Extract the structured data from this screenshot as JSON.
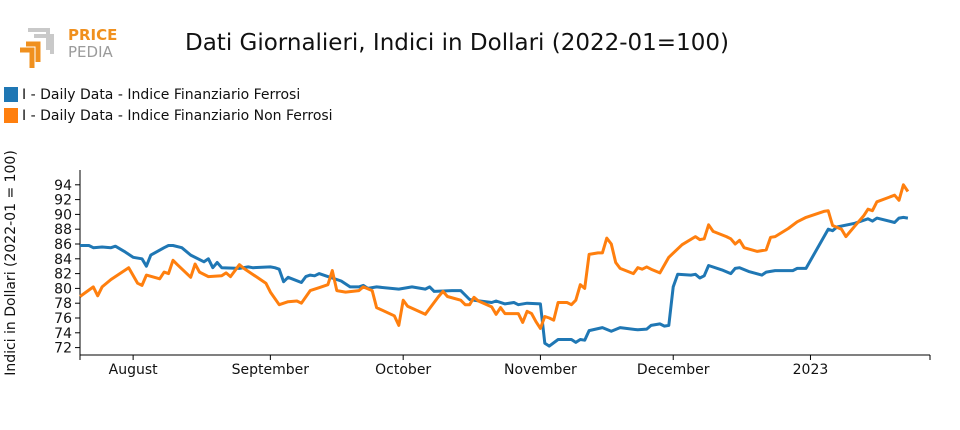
{
  "logo": {
    "line1": "PRICE",
    "line2": "PEDIA",
    "accent_color": "#f0901e",
    "secondary_color": "#9b9b9b"
  },
  "chart_data": {
    "type": "line",
    "title": "Dati Giornalieri, Indici in Dollari (2022-01=100)",
    "xlabel": "",
    "ylabel": "Indici in Dollari (2022-01 = 100)",
    "xlim": [
      "2022-07-20",
      "2023-01-28"
    ],
    "ylim": [
      71,
      96
    ],
    "y_ticks": [
      72,
      74,
      76,
      78,
      80,
      82,
      84,
      86,
      88,
      90,
      92,
      94
    ],
    "x_ticks": [
      {
        "date": "2022-08-01",
        "label": "August"
      },
      {
        "date": "2022-09-01",
        "label": "September"
      },
      {
        "date": "2022-10-01",
        "label": "October"
      },
      {
        "date": "2022-11-01",
        "label": "November"
      },
      {
        "date": "2022-12-01",
        "label": "December"
      },
      {
        "date": "2023-01-01",
        "label": "2023"
      }
    ],
    "grid": false,
    "legend_position": "top-left",
    "series": [
      {
        "name": "I - Daily Data - Indice Finanziario Ferrosi",
        "color": "#1f77b4",
        "points": [
          [
            "2022-07-20",
            85.8
          ],
          [
            "2022-07-22",
            85.8
          ],
          [
            "2022-07-23",
            85.5
          ],
          [
            "2022-07-25",
            85.6
          ],
          [
            "2022-07-27",
            85.5
          ],
          [
            "2022-07-28",
            85.7
          ],
          [
            "2022-07-30",
            85.0
          ],
          [
            "2022-08-01",
            84.2
          ],
          [
            "2022-08-03",
            84.0
          ],
          [
            "2022-08-04",
            83.0
          ],
          [
            "2022-08-05",
            84.5
          ],
          [
            "2022-08-08",
            85.5
          ],
          [
            "2022-08-09",
            85.8
          ],
          [
            "2022-08-10",
            85.8
          ],
          [
            "2022-08-12",
            85.5
          ],
          [
            "2022-08-14",
            84.5
          ],
          [
            "2022-08-17",
            83.6
          ],
          [
            "2022-08-18",
            84.0
          ],
          [
            "2022-08-19",
            82.8
          ],
          [
            "2022-08-20",
            83.5
          ],
          [
            "2022-08-21",
            82.8
          ],
          [
            "2022-08-25",
            82.7
          ],
          [
            "2022-08-27",
            82.9
          ],
          [
            "2022-08-28",
            82.8
          ],
          [
            "2022-09-01",
            82.9
          ],
          [
            "2022-09-02",
            82.8
          ],
          [
            "2022-09-03",
            82.6
          ],
          [
            "2022-09-04",
            80.9
          ],
          [
            "2022-09-05",
            81.5
          ],
          [
            "2022-09-08",
            80.8
          ],
          [
            "2022-09-09",
            81.6
          ],
          [
            "2022-09-10",
            81.8
          ],
          [
            "2022-09-11",
            81.7
          ],
          [
            "2022-09-12",
            82.0
          ],
          [
            "2022-09-14",
            81.6
          ],
          [
            "2022-09-17",
            81.0
          ],
          [
            "2022-09-19",
            80.2
          ],
          [
            "2022-09-21",
            80.2
          ],
          [
            "2022-09-22",
            80.4
          ],
          [
            "2022-09-23",
            80.0
          ],
          [
            "2022-09-25",
            80.2
          ],
          [
            "2022-09-30",
            79.9
          ],
          [
            "2022-10-03",
            80.2
          ],
          [
            "2022-10-06",
            79.9
          ],
          [
            "2022-10-07",
            80.2
          ],
          [
            "2022-10-08",
            79.6
          ],
          [
            "2022-10-12",
            79.7
          ],
          [
            "2022-10-14",
            79.7
          ],
          [
            "2022-10-16",
            78.5
          ],
          [
            "2022-10-17",
            78.4
          ],
          [
            "2022-10-21",
            78.1
          ],
          [
            "2022-10-22",
            78.3
          ],
          [
            "2022-10-24",
            77.9
          ],
          [
            "2022-10-26",
            78.1
          ],
          [
            "2022-10-27",
            77.8
          ],
          [
            "2022-10-29",
            78.0
          ],
          [
            "2022-11-01",
            77.9
          ],
          [
            "2022-11-02",
            72.6
          ],
          [
            "2022-11-03",
            72.2
          ],
          [
            "2022-11-05",
            73.1
          ],
          [
            "2022-11-08",
            73.1
          ],
          [
            "2022-11-09",
            72.7
          ],
          [
            "2022-11-10",
            73.1
          ],
          [
            "2022-11-11",
            73.0
          ],
          [
            "2022-11-12",
            74.3
          ],
          [
            "2022-11-15",
            74.7
          ],
          [
            "2022-11-17",
            74.2
          ],
          [
            "2022-11-19",
            74.7
          ],
          [
            "2022-11-23",
            74.4
          ],
          [
            "2022-11-25",
            74.5
          ],
          [
            "2022-11-26",
            75.0
          ],
          [
            "2022-11-28",
            75.2
          ],
          [
            "2022-11-29",
            74.9
          ],
          [
            "2022-11-30",
            75.0
          ],
          [
            "2022-12-01",
            80.2
          ],
          [
            "2022-12-02",
            81.9
          ],
          [
            "2022-12-05",
            81.8
          ],
          [
            "2022-12-06",
            81.9
          ],
          [
            "2022-12-07",
            81.4
          ],
          [
            "2022-12-08",
            81.7
          ],
          [
            "2022-12-09",
            83.1
          ],
          [
            "2022-12-12",
            82.5
          ],
          [
            "2022-12-14",
            82.0
          ],
          [
            "2022-12-15",
            82.7
          ],
          [
            "2022-12-16",
            82.8
          ],
          [
            "2022-12-18",
            82.3
          ],
          [
            "2022-12-21",
            81.8
          ],
          [
            "2022-12-22",
            82.2
          ],
          [
            "2022-12-24",
            82.4
          ],
          [
            "2022-12-28",
            82.4
          ],
          [
            "2022-12-29",
            82.7
          ],
          [
            "2022-12-31",
            82.7
          ],
          [
            "2023-01-05",
            88.0
          ],
          [
            "2023-01-06",
            87.8
          ],
          [
            "2023-01-07",
            88.3
          ],
          [
            "2023-01-11",
            88.8
          ],
          [
            "2023-01-14",
            89.4
          ],
          [
            "2023-01-15",
            89.1
          ],
          [
            "2023-01-16",
            89.5
          ],
          [
            "2023-01-20",
            88.9
          ],
          [
            "2023-01-21",
            89.5
          ],
          [
            "2023-01-22",
            89.6
          ],
          [
            "2023-01-23",
            89.5
          ]
        ]
      },
      {
        "name": "I - Daily Data - Indice Finanziario Non Ferrosi",
        "color": "#ff7f0e",
        "points": [
          [
            "2022-07-20",
            78.9
          ],
          [
            "2022-07-23",
            80.2
          ],
          [
            "2022-07-24",
            79.0
          ],
          [
            "2022-07-25",
            80.2
          ],
          [
            "2022-07-27",
            81.2
          ],
          [
            "2022-07-31",
            82.8
          ],
          [
            "2022-08-02",
            80.7
          ],
          [
            "2022-08-03",
            80.4
          ],
          [
            "2022-08-04",
            81.8
          ],
          [
            "2022-08-07",
            81.3
          ],
          [
            "2022-08-08",
            82.2
          ],
          [
            "2022-08-09",
            82.0
          ],
          [
            "2022-08-10",
            83.8
          ],
          [
            "2022-08-11",
            83.2
          ],
          [
            "2022-08-14",
            81.5
          ],
          [
            "2022-08-15",
            83.3
          ],
          [
            "2022-08-16",
            82.2
          ],
          [
            "2022-08-18",
            81.6
          ],
          [
            "2022-08-21",
            81.7
          ],
          [
            "2022-08-22",
            82.1
          ],
          [
            "2022-08-23",
            81.6
          ],
          [
            "2022-08-25",
            83.2
          ],
          [
            "2022-08-26",
            82.7
          ],
          [
            "2022-08-29",
            81.5
          ],
          [
            "2022-08-31",
            80.7
          ],
          [
            "2022-09-01",
            79.5
          ],
          [
            "2022-09-03",
            77.8
          ],
          [
            "2022-09-05",
            78.2
          ],
          [
            "2022-09-07",
            78.3
          ],
          [
            "2022-09-08",
            78.0
          ],
          [
            "2022-09-10",
            79.7
          ],
          [
            "2022-09-12",
            80.1
          ],
          [
            "2022-09-14",
            80.5
          ],
          [
            "2022-09-15",
            82.4
          ],
          [
            "2022-09-16",
            79.7
          ],
          [
            "2022-09-18",
            79.5
          ],
          [
            "2022-09-21",
            79.7
          ],
          [
            "2022-09-22",
            80.2
          ],
          [
            "2022-09-24",
            79.7
          ],
          [
            "2022-09-25",
            77.4
          ],
          [
            "2022-09-29",
            76.3
          ],
          [
            "2022-09-30",
            75.0
          ],
          [
            "2022-10-01",
            78.4
          ],
          [
            "2022-10-02",
            77.6
          ],
          [
            "2022-10-06",
            76.5
          ],
          [
            "2022-10-07",
            77.3
          ],
          [
            "2022-10-09",
            78.9
          ],
          [
            "2022-10-10",
            79.6
          ],
          [
            "2022-10-11",
            78.9
          ],
          [
            "2022-10-14",
            78.4
          ],
          [
            "2022-10-15",
            77.8
          ],
          [
            "2022-10-16",
            77.8
          ],
          [
            "2022-10-17",
            78.8
          ],
          [
            "2022-10-18",
            78.3
          ],
          [
            "2022-10-21",
            77.5
          ],
          [
            "2022-10-22",
            76.5
          ],
          [
            "2022-10-23",
            77.4
          ],
          [
            "2022-10-24",
            76.6
          ],
          [
            "2022-10-27",
            76.6
          ],
          [
            "2022-10-28",
            75.4
          ],
          [
            "2022-10-29",
            76.9
          ],
          [
            "2022-10-30",
            76.6
          ],
          [
            "2022-10-31",
            75.5
          ],
          [
            "2022-11-01",
            74.6
          ],
          [
            "2022-11-02",
            76.2
          ],
          [
            "2022-11-03",
            76.0
          ],
          [
            "2022-11-04",
            75.7
          ],
          [
            "2022-11-05",
            78.1
          ],
          [
            "2022-11-07",
            78.1
          ],
          [
            "2022-11-08",
            77.8
          ],
          [
            "2022-11-09",
            78.4
          ],
          [
            "2022-11-10",
            80.5
          ],
          [
            "2022-11-11",
            80.0
          ],
          [
            "2022-11-12",
            84.6
          ],
          [
            "2022-11-14",
            84.8
          ],
          [
            "2022-11-15",
            84.8
          ],
          [
            "2022-11-16",
            86.8
          ],
          [
            "2022-11-17",
            86.0
          ],
          [
            "2022-11-18",
            83.5
          ],
          [
            "2022-11-19",
            82.7
          ],
          [
            "2022-11-22",
            82.0
          ],
          [
            "2022-11-23",
            82.8
          ],
          [
            "2022-11-24",
            82.6
          ],
          [
            "2022-11-25",
            82.9
          ],
          [
            "2022-11-26",
            82.6
          ],
          [
            "2022-11-28",
            82.1
          ],
          [
            "2022-11-30",
            84.2
          ],
          [
            "2022-12-03",
            85.9
          ],
          [
            "2022-12-06",
            87.0
          ],
          [
            "2022-12-07",
            86.6
          ],
          [
            "2022-12-08",
            86.7
          ],
          [
            "2022-12-09",
            88.6
          ],
          [
            "2022-12-10",
            87.7
          ],
          [
            "2022-12-13",
            87.0
          ],
          [
            "2022-12-14",
            86.7
          ],
          [
            "2022-12-15",
            86.0
          ],
          [
            "2022-12-16",
            86.5
          ],
          [
            "2022-12-17",
            85.5
          ],
          [
            "2022-12-20",
            85.0
          ],
          [
            "2022-12-22",
            85.2
          ],
          [
            "2022-12-23",
            86.9
          ],
          [
            "2022-12-24",
            87.0
          ],
          [
            "2022-12-27",
            88.1
          ],
          [
            "2022-12-29",
            89.0
          ],
          [
            "2022-12-31",
            89.6
          ],
          [
            "2023-01-02",
            90.0
          ],
          [
            "2023-01-04",
            90.4
          ],
          [
            "2023-01-05",
            90.5
          ],
          [
            "2023-01-06",
            88.5
          ],
          [
            "2023-01-08",
            88.0
          ],
          [
            "2023-01-09",
            87.0
          ],
          [
            "2023-01-10",
            87.7
          ],
          [
            "2023-01-11",
            88.4
          ],
          [
            "2023-01-13",
            89.8
          ],
          [
            "2023-01-14",
            90.7
          ],
          [
            "2023-01-15",
            90.5
          ],
          [
            "2023-01-16",
            91.7
          ],
          [
            "2023-01-20",
            92.6
          ],
          [
            "2023-01-21",
            91.9
          ],
          [
            "2023-01-22",
            94.0
          ],
          [
            "2023-01-23",
            93.1
          ]
        ]
      }
    ]
  }
}
